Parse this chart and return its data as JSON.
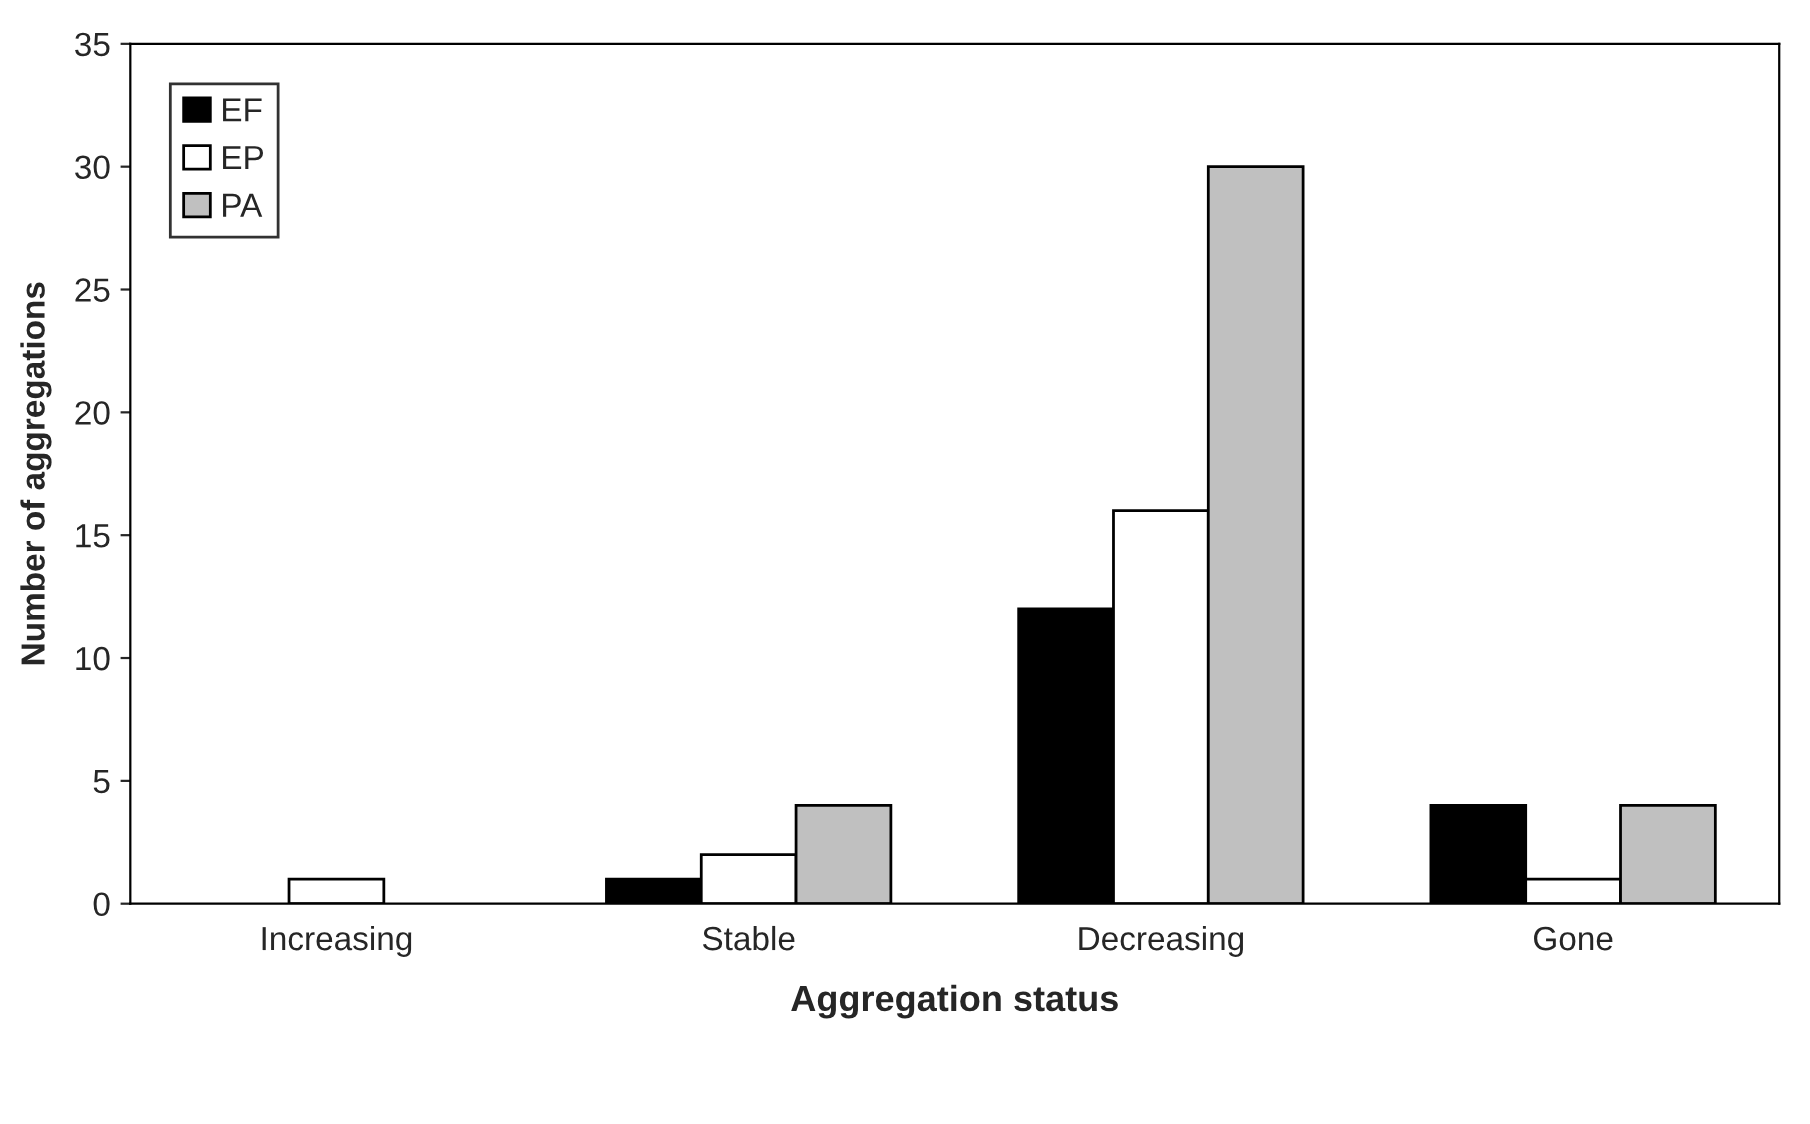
{
  "chart_data": {
    "type": "bar",
    "xlabel": "Aggregation status",
    "ylabel": "Number of aggregations",
    "categories": [
      "Increasing",
      "Stable",
      "Decreasing",
      "Gone"
    ],
    "series": [
      {
        "name": "EF",
        "color": "#000000",
        "values": [
          0,
          1,
          12,
          4
        ]
      },
      {
        "name": "EP",
        "color": "#ffffff",
        "values": [
          1,
          2,
          16,
          1
        ]
      },
      {
        "name": "PA",
        "color": "#c0c0c0",
        "values": [
          0,
          4,
          30,
          4
        ]
      }
    ],
    "ylim": [
      0,
      35
    ],
    "yticks": [
      0,
      5,
      10,
      15,
      20,
      25,
      30,
      35
    ],
    "grid": false,
    "legend": "top left"
  }
}
